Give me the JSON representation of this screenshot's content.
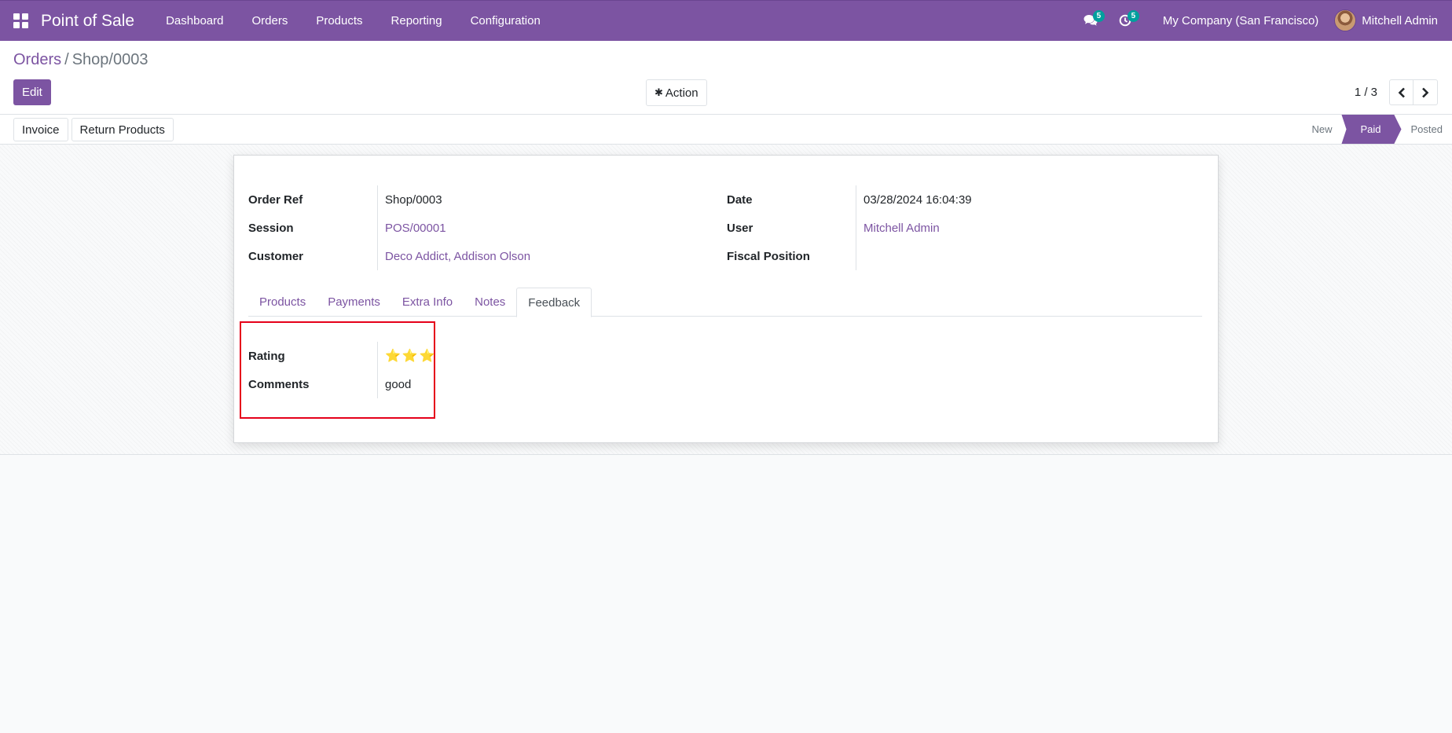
{
  "navbar": {
    "app_name": "Point of Sale",
    "menu": [
      "Dashboard",
      "Orders",
      "Products",
      "Reporting",
      "Configuration"
    ],
    "messages_count": "5",
    "activities_count": "5",
    "company": "My Company (San Francisco)",
    "user": "Mitchell Admin"
  },
  "control_panel": {
    "breadcrumb_parent": "Orders",
    "breadcrumb_separator": "/",
    "breadcrumb_current": "Shop/0003",
    "edit_label": "Edit",
    "action_label": "Action",
    "pager_value": "1 / 3"
  },
  "header": {
    "buttons": [
      "Invoice",
      "Return Products"
    ],
    "stages": [
      "New",
      "Paid",
      "Posted"
    ],
    "active_stage": "Paid"
  },
  "form": {
    "order_ref_label": "Order Ref",
    "order_ref": "Shop/0003",
    "session_label": "Session",
    "session": "POS/00001",
    "customer_label": "Customer",
    "customer": "Deco Addict, Addison Olson",
    "date_label": "Date",
    "date": "03/28/2024 16:04:39",
    "user_label": "User",
    "user": "Mitchell Admin",
    "fiscal_position_label": "Fiscal Position",
    "fiscal_position": ""
  },
  "tabs": [
    "Products",
    "Payments",
    "Extra Info",
    "Notes",
    "Feedback"
  ],
  "active_tab": "Feedback",
  "feedback": {
    "rating_label": "Rating",
    "rating_stars": "⭐⭐⭐",
    "rating_value": 3,
    "comments_label": "Comments",
    "comments": "good"
  },
  "colors": {
    "brand": "#7c54a2",
    "badge": "#00a09d",
    "highlight_box": "#e5001a",
    "star": "#f5c518"
  }
}
